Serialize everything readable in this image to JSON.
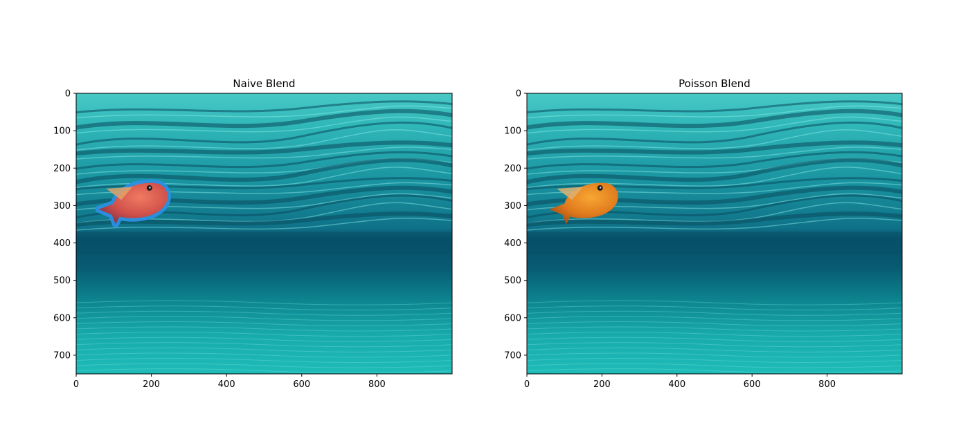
{
  "panels": [
    {
      "title": "Naive Blend",
      "variant": "naive",
      "fish_body_color": "#d4574a",
      "fish_edge_color": "#2b8fe0",
      "x_ticks": [
        "0",
        "200",
        "400",
        "600",
        "800"
      ],
      "y_ticks": [
        "0",
        "100",
        "200",
        "300",
        "400",
        "500",
        "600",
        "700"
      ]
    },
    {
      "title": "Poisson Blend",
      "variant": "poisson",
      "fish_body_color": "#e17a1e",
      "fish_edge_color": "none",
      "x_ticks": [
        "0",
        "200",
        "400",
        "600",
        "800"
      ],
      "y_ticks": [
        "0",
        "100",
        "200",
        "300",
        "400",
        "500",
        "600",
        "700"
      ]
    }
  ],
  "colors": {
    "water_surface_top": "#5ed4d0",
    "water_surface_mid": "#1e9ea6",
    "water_deep": "#07506a",
    "sand": "#19b4b3",
    "wave_dark": "#0a4a5c",
    "wave_light": "#8ff0ea"
  }
}
